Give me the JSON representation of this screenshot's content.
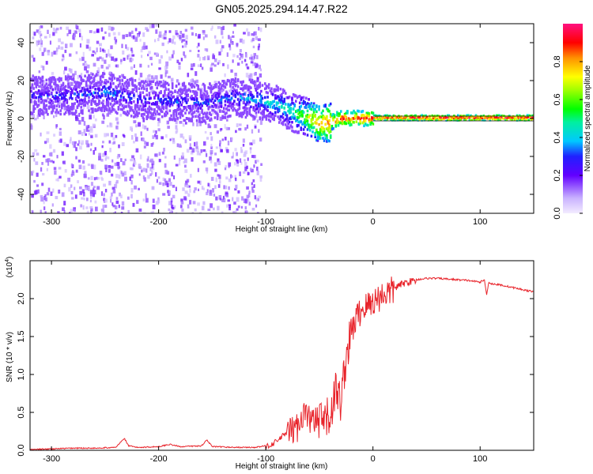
{
  "title": "GN05.2025.294.14.47.R22",
  "chart_data": [
    {
      "type": "heatmap",
      "panel": "spectrogram",
      "xlabel": "Height of straight line (km)",
      "ylabel": "Frequency (Hz)",
      "xlim": [
        -320,
        150
      ],
      "ylim": [
        -50,
        50
      ],
      "xticks": [
        -300,
        -200,
        -100,
        0,
        100
      ],
      "yticks": [
        -40,
        -20,
        0,
        20,
        40
      ],
      "colorbar": {
        "label": "Normalized spectral amplitude",
        "range": [
          0.0,
          1.0
        ],
        "ticks": [
          0.0,
          0.2,
          0.4,
          0.6,
          0.8
        ]
      },
      "ridge": {
        "description_free": true,
        "x": [
          -280,
          -250,
          -220,
          -190,
          -160,
          -130,
          -110,
          -90,
          -75,
          -60,
          -50,
          -40,
          -30,
          -20,
          -10,
          0,
          20,
          60,
          100,
          150
        ],
        "frequency": [
          12,
          14,
          10,
          9,
          8,
          11,
          10,
          7,
          3,
          0,
          -3,
          -2,
          0,
          0,
          0,
          0,
          0,
          0,
          0,
          0
        ],
        "amplitude": [
          0.3,
          0.35,
          0.3,
          0.3,
          0.3,
          0.35,
          0.4,
          0.45,
          0.5,
          0.7,
          0.8,
          0.85,
          0.9,
          0.85,
          0.9,
          0.9,
          0.92,
          0.95,
          0.95,
          0.95
        ]
      }
    },
    {
      "type": "line",
      "panel": "snr",
      "xlabel": "Height of straight line (km)",
      "ylabel": "SNR (10 * v/v)",
      "y_multiplier": "(x10^4)",
      "multiplier_base": "(x10",
      "multiplier_exp": "4",
      "multiplier_close": ")",
      "xlim": [
        -320,
        150
      ],
      "ylim": [
        0.0,
        2.5
      ],
      "xticks": [
        -300,
        -200,
        -100,
        0,
        100
      ],
      "yticks": [
        "0.0",
        "0.5",
        "1.0",
        "1.5",
        "2.0"
      ],
      "color": "#e8232a",
      "series": [
        {
          "name": "SNR",
          "x": [
            -320,
            -300,
            -280,
            -260,
            -240,
            -232,
            -228,
            -220,
            -200,
            -190,
            -180,
            -160,
            -155,
            -150,
            -130,
            -110,
            -100,
            -90,
            -80,
            -70,
            -65,
            -60,
            -50,
            -40,
            -35,
            -30,
            -25,
            -20,
            -15,
            -10,
            -5,
            0,
            10,
            20,
            30,
            40,
            50,
            60,
            70,
            80,
            90,
            100,
            104,
            106,
            108,
            110,
            120,
            130,
            140,
            150
          ],
          "y": [
            0.01,
            0.02,
            0.03,
            0.03,
            0.04,
            0.16,
            0.06,
            0.04,
            0.05,
            0.08,
            0.05,
            0.06,
            0.14,
            0.05,
            0.04,
            0.04,
            0.06,
            0.12,
            0.25,
            0.35,
            0.55,
            0.45,
            0.4,
            0.5,
            0.85,
            0.7,
            1.3,
            1.6,
            1.8,
            1.9,
            1.95,
            2.0,
            2.1,
            2.15,
            2.22,
            2.25,
            2.27,
            2.27,
            2.26,
            2.25,
            2.24,
            2.22,
            2.25,
            2.05,
            2.22,
            2.2,
            2.18,
            2.15,
            2.12,
            2.09
          ]
        }
      ]
    }
  ]
}
